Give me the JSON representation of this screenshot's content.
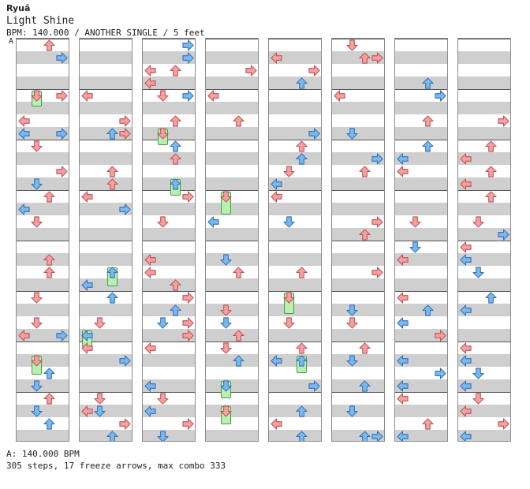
{
  "header": {
    "artist": "Ryuâ",
    "title": "Light Shine",
    "info": "BPM: 140.000 / ANOTHER SINGLE / 5 feet",
    "bpm_marker": "A"
  },
  "footer": {
    "bpm_line": "A: 140.000 BPM",
    "stats": "305 steps, 17 freeze arrows, max combo 333"
  },
  "colors": {
    "red": "#f4a0a4",
    "red_stroke": "#c0504d",
    "blue": "#7ab8f0",
    "blue_stroke": "#2f6fb4",
    "freeze": "#b8f0b0"
  },
  "columns_count": 8
}
